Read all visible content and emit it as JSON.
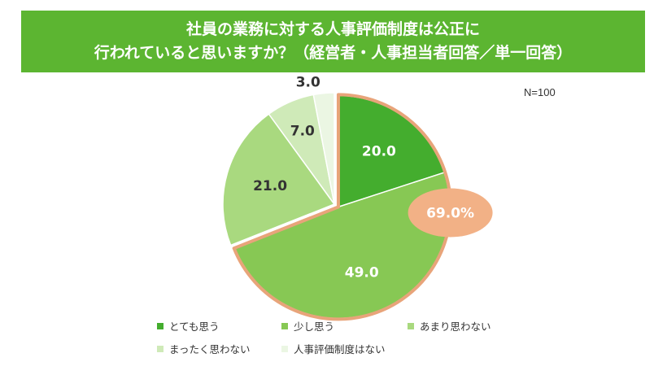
{
  "header": {
    "title_line1": "社員の業務に対する人事評価制度は公正に",
    "title_line2": "行われていると思いますか？（経営者・人事担当者回答／単一回答）"
  },
  "chart_data": {
    "type": "pie",
    "n_label": "N=100",
    "categories": [
      "とても思う",
      "少し思う",
      "あまり思わない",
      "まったく思わない",
      "人事評価制度はない"
    ],
    "values": [
      20.0,
      49.0,
      21.0,
      7.0,
      3.0
    ],
    "value_labels": [
      "20.0",
      "49.0",
      "21.0",
      "7.0",
      "3.0"
    ],
    "colors": [
      "#44ad2e",
      "#87c854",
      "#a9d97f",
      "#cfeab8",
      "#ebf6e3"
    ],
    "highlight": {
      "label": "69.0%",
      "categories": [
        "とても思う",
        "少し思う"
      ],
      "color": "#f2b186",
      "outline": "#e8a47a"
    },
    "start_angle": "12 o'clock",
    "direction": "clockwise",
    "legend_position": "bottom"
  }
}
